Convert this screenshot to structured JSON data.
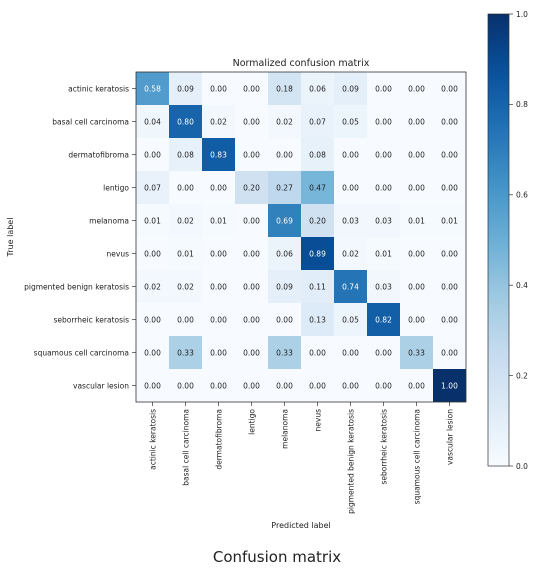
{
  "caption": "Confusion matrix",
  "chart_data": {
    "type": "heatmap",
    "title": "Normalized confusion matrix",
    "xlabel": "Predicted label",
    "ylabel": "True label",
    "row_labels": [
      "actinic keratosis",
      "basal cell carcinoma",
      "dermatofibroma",
      "lentigo",
      "melanoma",
      "nevus",
      "pigmented benign keratosis",
      "seborrheic keratosis",
      "squamous cell carcinoma",
      "vascular lesion"
    ],
    "col_labels": [
      "actinic keratosis",
      "basal cell carcinoma",
      "dermatofibroma",
      "lentigo",
      "melanoma",
      "nevus",
      "pigmented benign keratosis",
      "seborrheic keratosis",
      "squamous cell carcinoma",
      "vascular lesion"
    ],
    "values": [
      [
        0.58,
        0.09,
        0.0,
        0.0,
        0.18,
        0.06,
        0.09,
        0.0,
        0.0,
        0.0
      ],
      [
        0.04,
        0.8,
        0.02,
        0.0,
        0.02,
        0.07,
        0.05,
        0.0,
        0.0,
        0.0
      ],
      [
        0.0,
        0.08,
        0.83,
        0.0,
        0.0,
        0.08,
        0.0,
        0.0,
        0.0,
        0.0
      ],
      [
        0.07,
        0.0,
        0.0,
        0.2,
        0.27,
        0.47,
        0.0,
        0.0,
        0.0,
        0.0
      ],
      [
        0.01,
        0.02,
        0.01,
        0.0,
        0.69,
        0.2,
        0.03,
        0.03,
        0.01,
        0.01
      ],
      [
        0.0,
        0.01,
        0.0,
        0.0,
        0.06,
        0.89,
        0.02,
        0.01,
        0.0,
        0.0
      ],
      [
        0.02,
        0.02,
        0.0,
        0.0,
        0.09,
        0.11,
        0.74,
        0.03,
        0.0,
        0.0
      ],
      [
        0.0,
        0.0,
        0.0,
        0.0,
        0.0,
        0.13,
        0.05,
        0.82,
        0.0,
        0.0
      ],
      [
        0.0,
        0.33,
        0.0,
        0.0,
        0.33,
        0.0,
        0.0,
        0.0,
        0.33,
        0.0
      ],
      [
        0.0,
        0.0,
        0.0,
        0.0,
        0.0,
        0.0,
        0.0,
        0.0,
        0.0,
        1.0
      ]
    ],
    "value_format": "0.00",
    "colormap": "Blues",
    "vmin": 0.0,
    "vmax": 1.0,
    "colorbar_ticks": [
      "0.0",
      "0.2",
      "0.4",
      "0.6",
      "0.8",
      "1.0"
    ],
    "grid": false,
    "colors": {
      "low": "#f7fbff",
      "high": "#08306b"
    }
  }
}
